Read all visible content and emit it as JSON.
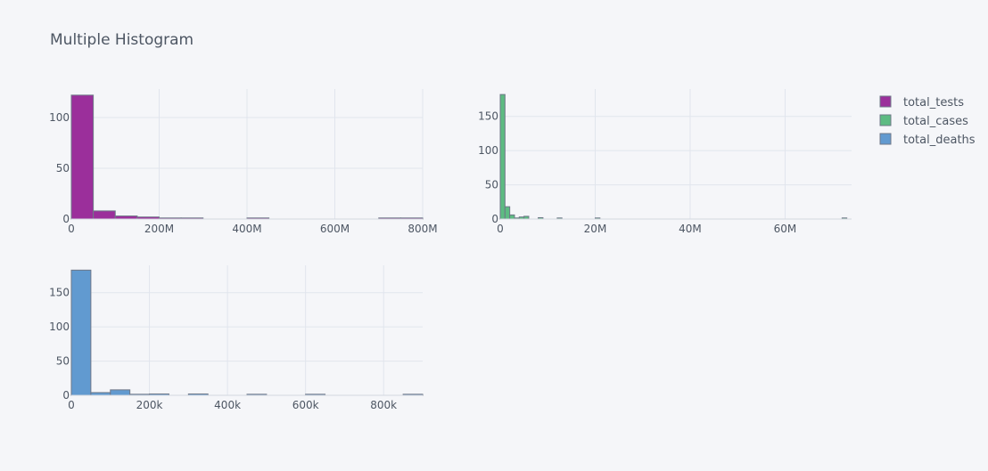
{
  "title": "Multiple Histogram",
  "colors": {
    "background": "#f5f6f9",
    "grid": "#e1e5ed",
    "text": "#4d5663",
    "bar_outline": "#6f7888"
  },
  "legend": {
    "placement": "top-right",
    "items": [
      {
        "label": "total_tests",
        "color": "#9b2f9b"
      },
      {
        "label": "total_cases",
        "color": "#5dbb82"
      },
      {
        "label": "total_deaths",
        "color": "#619ad0"
      }
    ]
  },
  "chart_data": [
    {
      "type": "bar",
      "subtype": "histogram",
      "name": "total_tests",
      "color": "#9b2f9b",
      "grid": true,
      "xlim": [
        0,
        800000000
      ],
      "ylim": [
        0,
        128
      ],
      "x_ticks": [
        0,
        200000000,
        400000000,
        600000000,
        800000000
      ],
      "x_tick_labels": [
        "0",
        "200M",
        "400M",
        "600M",
        "800M"
      ],
      "y_ticks": [
        0,
        50,
        100
      ],
      "y_tick_labels": [
        "0",
        "50",
        "100"
      ],
      "bins": [
        {
          "x0": 0,
          "x1": 50000000,
          "count": 122
        },
        {
          "x0": 50000000,
          "x1": 100000000,
          "count": 8
        },
        {
          "x0": 100000000,
          "x1": 150000000,
          "count": 3
        },
        {
          "x0": 150000000,
          "x1": 200000000,
          "count": 2
        },
        {
          "x0": 200000000,
          "x1": 250000000,
          "count": 1
        },
        {
          "x0": 250000000,
          "x1": 300000000,
          "count": 1
        },
        {
          "x0": 400000000,
          "x1": 450000000,
          "count": 1
        },
        {
          "x0": 700000000,
          "x1": 750000000,
          "count": 1
        },
        {
          "x0": 750000000,
          "x1": 800000000,
          "count": 1
        }
      ]
    },
    {
      "type": "bar",
      "subtype": "histogram",
      "name": "total_cases",
      "color": "#5dbb82",
      "grid": true,
      "xlim": [
        0,
        74000000
      ],
      "ylim": [
        0,
        190
      ],
      "x_ticks": [
        0,
        20000000,
        40000000,
        60000000
      ],
      "x_tick_labels": [
        "0",
        "20M",
        "40M",
        "60M"
      ],
      "y_ticks": [
        0,
        50,
        100,
        150
      ],
      "y_tick_labels": [
        "0",
        "50",
        "100",
        "150"
      ],
      "bins": [
        {
          "x0": 0,
          "x1": 1000000,
          "count": 182
        },
        {
          "x0": 1000000,
          "x1": 2000000,
          "count": 18
        },
        {
          "x0": 2000000,
          "x1": 3000000,
          "count": 6
        },
        {
          "x0": 3000000,
          "x1": 4000000,
          "count": 1
        },
        {
          "x0": 4000000,
          "x1": 5000000,
          "count": 3
        },
        {
          "x0": 5000000,
          "x1": 6000000,
          "count": 4
        },
        {
          "x0": 8000000,
          "x1": 9000000,
          "count": 2
        },
        {
          "x0": 12000000,
          "x1": 13000000,
          "count": 1
        },
        {
          "x0": 20000000,
          "x1": 21000000,
          "count": 1
        },
        {
          "x0": 72000000,
          "x1": 73000000,
          "count": 1
        }
      ]
    },
    {
      "type": "bar",
      "subtype": "histogram",
      "name": "total_deaths",
      "color": "#619ad0",
      "grid": true,
      "xlim": [
        0,
        900000
      ],
      "ylim": [
        0,
        190
      ],
      "x_ticks": [
        0,
        200000,
        400000,
        600000,
        800000
      ],
      "x_tick_labels": [
        "0",
        "200k",
        "400k",
        "600k",
        "800k"
      ],
      "y_ticks": [
        0,
        50,
        100,
        150
      ],
      "y_tick_labels": [
        "0",
        "50",
        "100",
        "150"
      ],
      "bins": [
        {
          "x0": 0,
          "x1": 50000,
          "count": 183
        },
        {
          "x0": 50000,
          "x1": 100000,
          "count": 4
        },
        {
          "x0": 100000,
          "x1": 150000,
          "count": 8
        },
        {
          "x0": 150000,
          "x1": 200000,
          "count": 1
        },
        {
          "x0": 200000,
          "x1": 250000,
          "count": 2
        },
        {
          "x0": 300000,
          "x1": 350000,
          "count": 2
        },
        {
          "x0": 450000,
          "x1": 500000,
          "count": 1
        },
        {
          "x0": 600000,
          "x1": 650000,
          "count": 1
        },
        {
          "x0": 850000,
          "x1": 900000,
          "count": 1
        }
      ]
    }
  ]
}
